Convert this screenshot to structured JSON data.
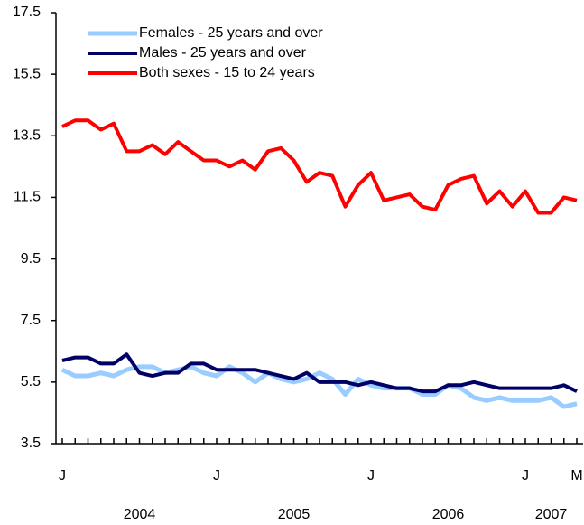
{
  "chart_data": {
    "type": "line",
    "categories": [
      "J",
      null,
      null,
      null,
      null,
      null,
      null,
      null,
      null,
      null,
      null,
      null,
      "J",
      null,
      null,
      null,
      null,
      null,
      null,
      null,
      null,
      null,
      null,
      null,
      "J",
      null,
      null,
      null,
      null,
      null,
      null,
      null,
      null,
      null,
      null,
      null,
      "J",
      null,
      null,
      null,
      "M"
    ],
    "years": [
      "2004",
      "2005",
      "2006",
      "2007"
    ],
    "series": [
      {
        "name": "Females - 25 years and over",
        "color": "#99ccff",
        "values": [
          5.9,
          5.7,
          5.7,
          5.8,
          5.7,
          5.9,
          6.0,
          6.0,
          5.8,
          5.9,
          6.0,
          5.8,
          5.7,
          6.0,
          5.8,
          5.5,
          5.8,
          5.6,
          5.5,
          5.6,
          5.8,
          5.6,
          5.1,
          5.6,
          5.4,
          5.3,
          5.3,
          5.3,
          5.1,
          5.1,
          5.4,
          5.3,
          5.0,
          4.9,
          5.0,
          4.9,
          4.9,
          4.9,
          5.0,
          4.7,
          4.8
        ]
      },
      {
        "name": "Males - 25 years and over",
        "color": "#000066",
        "values": [
          6.2,
          6.3,
          6.3,
          6.1,
          6.1,
          6.4,
          5.8,
          5.7,
          5.8,
          5.8,
          6.1,
          6.1,
          5.9,
          5.9,
          5.9,
          5.9,
          5.8,
          5.7,
          5.6,
          5.8,
          5.5,
          5.5,
          5.5,
          5.4,
          5.5,
          5.4,
          5.3,
          5.3,
          5.2,
          5.2,
          5.4,
          5.4,
          5.5,
          5.4,
          5.3,
          5.3,
          5.3,
          5.3,
          5.3,
          5.4,
          5.2
        ]
      },
      {
        "name": "Both sexes - 15 to 24 years",
        "color": "#ff0000",
        "values": [
          13.8,
          14.0,
          14.0,
          13.7,
          13.9,
          13.0,
          13.0,
          13.2,
          12.9,
          13.3,
          13.0,
          12.7,
          12.7,
          12.5,
          12.7,
          12.4,
          13.0,
          13.1,
          12.7,
          12.0,
          12.3,
          12.2,
          11.2,
          11.9,
          12.3,
          11.4,
          11.5,
          11.6,
          11.2,
          11.1,
          11.9,
          12.1,
          12.2,
          11.3,
          11.7,
          11.2,
          11.7,
          11.0,
          11.0,
          11.5,
          11.4
        ]
      }
    ],
    "ylim": [
      3.5,
      17.5
    ],
    "yticks": [
      3.5,
      5.5,
      7.5,
      9.5,
      11.5,
      13.5,
      15.5,
      17.5
    ],
    "grid": false,
    "legend": "top-left"
  }
}
